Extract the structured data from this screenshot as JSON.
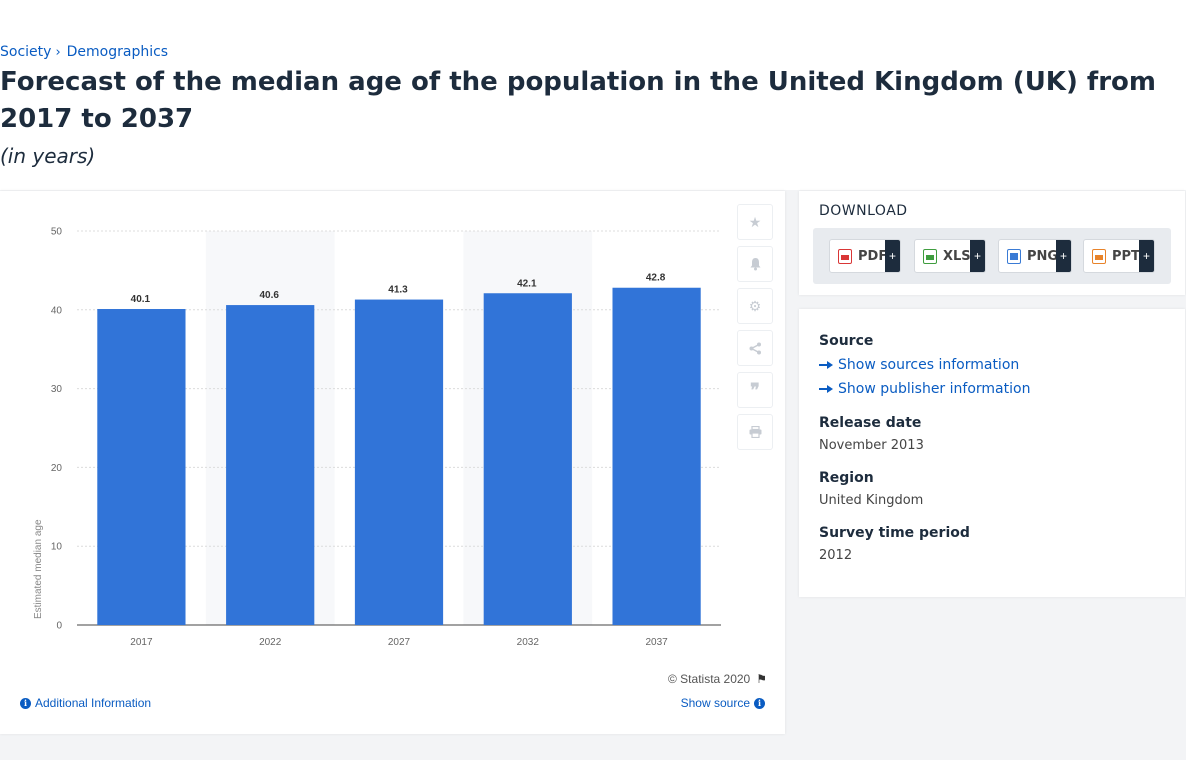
{
  "breadcrumb": {
    "items": [
      "Society",
      "Demographics"
    ],
    "separator": "›"
  },
  "page": {
    "title": "Forecast of the median age of the population in the United Kingdom (UK) from 2017 to 2037",
    "subtitle": "(in years)"
  },
  "chart_data": {
    "type": "bar",
    "categories": [
      "2017",
      "2022",
      "2027",
      "2032",
      "2037"
    ],
    "values": [
      40.1,
      40.6,
      41.3,
      42.1,
      42.8
    ],
    "value_labels": [
      "40.1",
      "40.6",
      "41.3",
      "42.1",
      "42.8"
    ],
    "ylabel": "Estimated median age",
    "xlabel": "",
    "ylim": [
      0,
      50
    ],
    "yticks": [
      0,
      10,
      20,
      30,
      40,
      50
    ],
    "grid": true,
    "bar_color": "#3174d8"
  },
  "chart_tools": {
    "icons": [
      "star-icon",
      "bell-icon",
      "gear-icon",
      "share-icon",
      "quote-icon",
      "print-icon"
    ]
  },
  "chart_footer": {
    "copyright": "© Statista 2020",
    "additional_info": "Additional Information",
    "show_source": "Show source"
  },
  "download": {
    "title": "DOWNLOAD",
    "buttons": [
      {
        "label": "PDF",
        "color": "#d93636"
      },
      {
        "label": "XLS",
        "color": "#3f9d3f"
      },
      {
        "label": "PNG",
        "color": "#3a7bd5"
      },
      {
        "label": "PPT",
        "color": "#e8832a"
      }
    ],
    "plus": "+"
  },
  "source_panel": {
    "source_heading": "Source",
    "show_sources": "Show sources information",
    "show_publisher": "Show publisher information",
    "release_heading": "Release date",
    "release_value": "November 2013",
    "region_heading": "Region",
    "region_value": "United Kingdom",
    "survey_heading": "Survey time period",
    "survey_value": "2012"
  }
}
